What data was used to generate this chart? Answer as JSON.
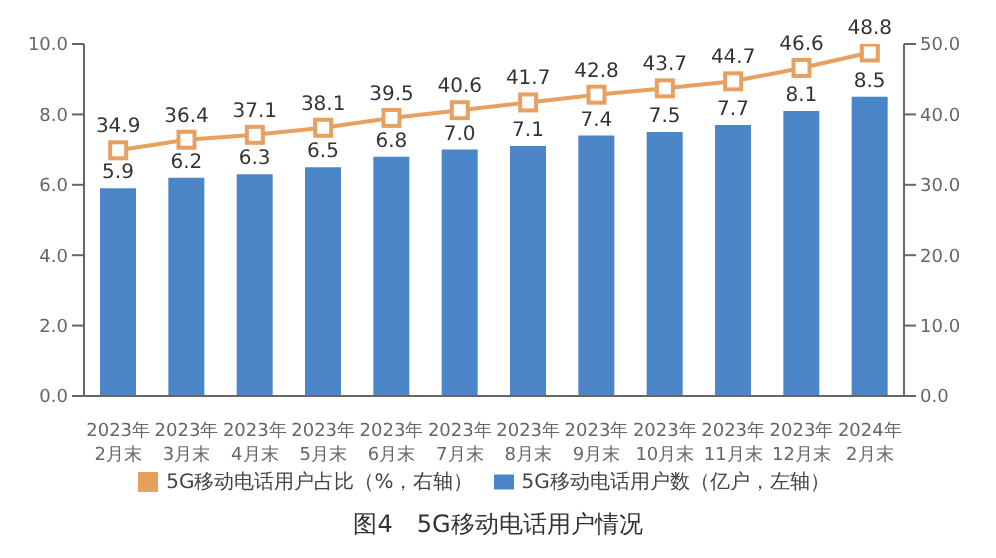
{
  "chart_data": {
    "type": "bar",
    "title": "图4　5G移动电话用户情况",
    "categories": [
      "2023年\n2月末",
      "2023年\n3月末",
      "2023年\n4月末",
      "2023年\n5月末",
      "2023年\n6月末",
      "2023年\n7月末",
      "2023年\n8月末",
      "2023年\n9月末",
      "2023年\n10月末",
      "2023年\n11月末",
      "2023年\n12月末",
      "2024年\n2月末"
    ],
    "series": [
      {
        "name": "5G移动电话用户数（亿户，左轴）",
        "color": "#4a86c8",
        "values": [
          5.9,
          6.2,
          6.3,
          6.5,
          6.8,
          7.0,
          7.1,
          7.4,
          7.5,
          7.7,
          8.1,
          8.5
        ],
        "value_labels": [
          "5.9",
          "6.2",
          "6.3",
          "6.5",
          "6.8",
          "7.0",
          "7.1",
          "7.4",
          "7.5",
          "7.7",
          "8.1",
          "8.5"
        ]
      },
      {
        "name": "5G移动电话用户占比（%，右轴）",
        "type": "line",
        "axis": "y2",
        "color": "#e8a060",
        "marker": "square",
        "values": [
          34.9,
          36.4,
          37.1,
          38.1,
          39.5,
          40.6,
          41.7,
          42.8,
          43.7,
          44.7,
          46.6,
          48.8
        ]
      }
    ],
    "ylim": [
      0,
      10
    ],
    "yticks": [
      {
        "value": 0,
        "label": "0.0"
      },
      {
        "value": 2,
        "label": "2.0"
      },
      {
        "value": 4,
        "label": "4.0"
      },
      {
        "value": 6,
        "label": "6.0"
      },
      {
        "value": 8,
        "label": "8.0"
      },
      {
        "value": 10,
        "label": "10.0"
      }
    ],
    "y2lim": [
      0,
      50
    ],
    "y2ticks": [
      {
        "value": 0,
        "label": "0.0"
      },
      {
        "value": 10,
        "label": "10.0"
      },
      {
        "value": 20,
        "label": "20.0"
      },
      {
        "value": 30,
        "label": "30.0"
      },
      {
        "value": 40,
        "label": "40.0"
      },
      {
        "value": 50,
        "label": "50.0"
      }
    ],
    "data_labels": true,
    "legend": "bottom",
    "grid": false
  }
}
